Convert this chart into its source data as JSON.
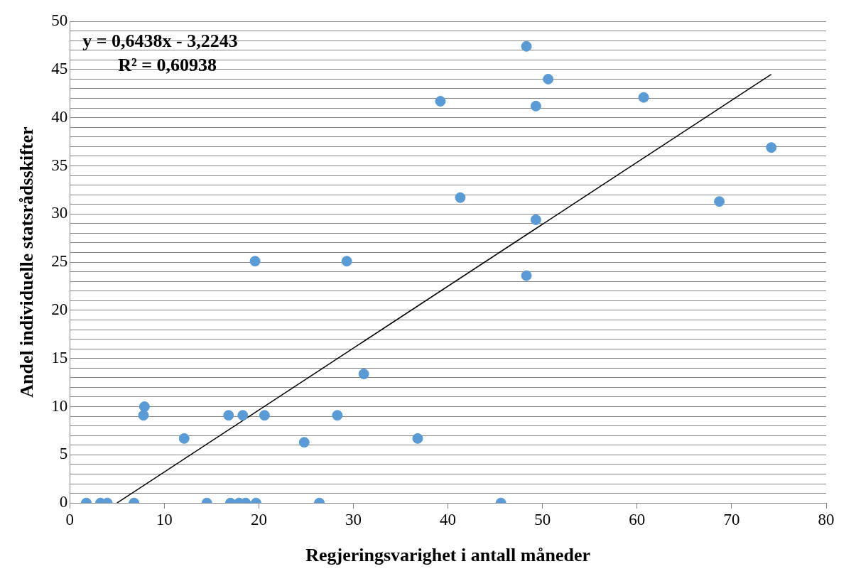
{
  "chart_data": {
    "type": "scatter",
    "xlabel": "Regjeringsvarighet i antall måneder",
    "ylabel": "Andel individuelle statsrådsskifter",
    "annotations": [
      "y = 0,6438x - 3,2243",
      "R² = 0,60938"
    ],
    "series": [
      {
        "color": "#5b9bd5",
        "marker": "circle",
        "x": [
          1.75,
          3.25,
          3.97,
          6.8,
          14.5,
          17.0,
          17.9,
          18.6,
          19.7,
          26.4,
          45.6,
          7.8,
          7.9,
          12.1,
          16.8,
          18.3,
          20.6,
          19.6,
          24.8,
          28.3,
          29.3,
          31.1,
          36.8,
          39.2,
          41.3,
          48.3,
          48.3,
          49.3,
          49.3,
          50.6,
          60.7,
          68.7,
          74.2
        ],
        "values": [
          0,
          0,
          0,
          0,
          0,
          0,
          0,
          0,
          0,
          0,
          0,
          9.1,
          10.0,
          6.7,
          9.1,
          9.1,
          9.1,
          25.1,
          6.3,
          9.1,
          25.1,
          13.4,
          6.7,
          41.7,
          31.7,
          47.4,
          23.6,
          41.2,
          29.4,
          44.0,
          42.1,
          31.3,
          36.9
        ]
      },
      {
        "type": "line",
        "color": "#000000",
        "marker": "none",
        "line_style": "solid",
        "x": [
          5,
          74.2
        ],
        "values": [
          0,
          44.5
        ]
      }
    ],
    "xlim": [
      0,
      80
    ],
    "xticks": [
      0,
      10,
      20,
      30,
      40,
      50,
      60,
      70,
      80
    ],
    "ylim": [
      0,
      50
    ],
    "yticks": [
      0,
      {
        "value": 1,
        "label": null
      },
      {
        "value": 2,
        "label": null
      },
      {
        "value": 3,
        "label": null
      },
      {
        "value": 4,
        "label": null
      },
      5,
      {
        "value": 6,
        "label": null
      },
      {
        "value": 7,
        "label": null
      },
      {
        "value": 8,
        "label": null
      },
      {
        "value": 9,
        "label": null
      },
      10,
      {
        "value": 11,
        "label": null
      },
      {
        "value": 12,
        "label": null
      },
      {
        "value": 13,
        "label": null
      },
      {
        "value": 14,
        "label": null
      },
      15,
      {
        "value": 16,
        "label": null
      },
      {
        "value": 17,
        "label": null
      },
      {
        "value": 18,
        "label": null
      },
      {
        "value": 19,
        "label": null
      },
      20,
      {
        "value": 21,
        "label": null
      },
      {
        "value": 22,
        "label": null
      },
      {
        "value": 23,
        "label": null
      },
      {
        "value": 24,
        "label": null
      },
      25,
      {
        "value": 26,
        "label": null
      },
      {
        "value": 27,
        "label": null
      },
      {
        "value": 28,
        "label": null
      },
      {
        "value": 29,
        "label": null
      },
      30,
      {
        "value": 31,
        "label": null
      },
      {
        "value": 32,
        "label": null
      },
      {
        "value": 33,
        "label": null
      },
      {
        "value": 34,
        "label": null
      },
      35,
      {
        "value": 36,
        "label": null
      },
      {
        "value": 37,
        "label": null
      },
      {
        "value": 38,
        "label": null
      },
      {
        "value": 39,
        "label": null
      },
      40,
      {
        "value": 41,
        "label": null
      },
      {
        "value": 42,
        "label": null
      },
      {
        "value": 43,
        "label": null
      },
      {
        "value": 44,
        "label": null
      },
      45,
      {
        "value": 46,
        "label": null
      },
      {
        "value": 47,
        "label": null
      },
      {
        "value": 48,
        "label": null
      },
      {
        "value": 49,
        "label": null
      },
      50
    ],
    "grid": "y",
    "legend": false
  }
}
